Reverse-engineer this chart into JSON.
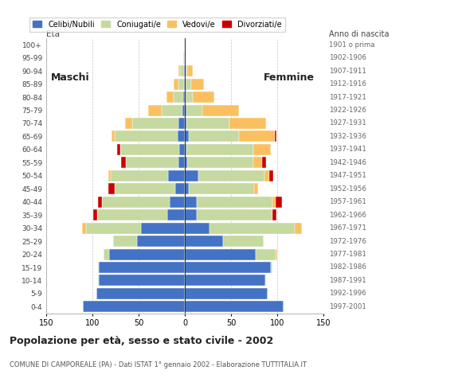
{
  "age_groups": [
    "0-4",
    "5-9",
    "10-14",
    "15-19",
    "20-24",
    "25-29",
    "30-34",
    "35-39",
    "40-44",
    "45-49",
    "50-54",
    "55-59",
    "60-64",
    "65-69",
    "70-74",
    "75-79",
    "80-84",
    "85-89",
    "90-94",
    "95-99",
    "100+"
  ],
  "birth_years": [
    "1997-2001",
    "1992-1996",
    "1987-1991",
    "1982-1986",
    "1977-1981",
    "1972-1976",
    "1967-1971",
    "1962-1966",
    "1957-1961",
    "1952-1956",
    "1947-1951",
    "1942-1946",
    "1937-1941",
    "1932-1936",
    "1927-1931",
    "1922-1926",
    "1917-1921",
    "1912-1916",
    "1907-1911",
    "1902-1906",
    "1901 o prima"
  ],
  "males": {
    "celibi": [
      110,
      96,
      93,
      93,
      82,
      52,
      47,
      19,
      16,
      10,
      18,
      7,
      6,
      8,
      7,
      3,
      2,
      1,
      1,
      0,
      0
    ],
    "coniugati": [
      0,
      0,
      1,
      1,
      6,
      26,
      60,
      76,
      74,
      66,
      62,
      57,
      64,
      68,
      50,
      22,
      10,
      6,
      4,
      1,
      0
    ],
    "vedovi": [
      0,
      0,
      0,
      0,
      0,
      0,
      4,
      0,
      0,
      0,
      3,
      0,
      0,
      3,
      8,
      15,
      8,
      5,
      2,
      1,
      0
    ],
    "divorziati": [
      0,
      0,
      0,
      0,
      0,
      0,
      0,
      4,
      4,
      7,
      0,
      5,
      3,
      0,
      0,
      0,
      0,
      0,
      0,
      0,
      0
    ]
  },
  "females": {
    "nubili": [
      107,
      90,
      87,
      93,
      77,
      41,
      27,
      13,
      13,
      4,
      15,
      3,
      2,
      4,
      2,
      2,
      1,
      1,
      1,
      0,
      0
    ],
    "coniugate": [
      0,
      0,
      1,
      2,
      21,
      44,
      92,
      82,
      82,
      71,
      71,
      71,
      72,
      55,
      46,
      17,
      8,
      6,
      2,
      0,
      0
    ],
    "vedove": [
      0,
      0,
      0,
      0,
      2,
      0,
      8,
      0,
      3,
      4,
      5,
      10,
      19,
      38,
      40,
      40,
      23,
      14,
      6,
      1,
      0
    ],
    "divorziate": [
      0,
      0,
      0,
      0,
      0,
      0,
      0,
      4,
      7,
      0,
      5,
      4,
      0,
      2,
      0,
      0,
      0,
      0,
      0,
      0,
      0
    ]
  },
  "colors": {
    "celibi": "#4472c4",
    "coniugati": "#c5d9a0",
    "vedovi": "#fac060",
    "divorziati": "#cc0000"
  },
  "title": "Popolazione per età, sesso e stato civile - 2002",
  "subtitle": "COMUNE DI CAMPOREALE (PA) - Dati ISTAT 1° gennaio 2002 - Elaborazione TUTTITALIA.IT",
  "legend_labels": [
    "Celibi/Nubili",
    "Coniugati/e",
    "Vedovi/e",
    "Divorziati/e"
  ],
  "xlim": 150,
  "background_color": "#ffffff",
  "grid_color": "#aaaaaa"
}
